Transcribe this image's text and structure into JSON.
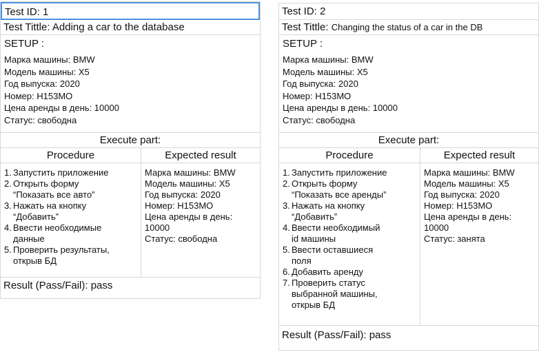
{
  "cards": [
    {
      "id_text": "Test ID: 1",
      "title_label": "Test Tittle: ",
      "title_value": "Adding a car to the database",
      "setup_label": "SETUP :",
      "setup_lines": [
        "Марка машины: BMW",
        "Модель машины: X5",
        "Год выпуска: 2020",
        "Номер: Н153МО",
        "Цена аренды в день: 10000",
        "Статус: свободна"
      ],
      "execute_label": "Execute part:",
      "procedure_label": "Procedure",
      "expected_label": "Expected result",
      "procedure_steps": [
        {
          "n": "1.",
          "lines": [
            "Запустить приложение"
          ]
        },
        {
          "n": "2.",
          "lines": [
            "Открыть форму",
            "“Показать все авто”"
          ]
        },
        {
          "n": "3.",
          "lines": [
            "Нажать на кнопку",
            "“Добавить”"
          ]
        },
        {
          "n": "4.",
          "lines": [
            "Ввести необходимые",
            "данные"
          ]
        },
        {
          "n": "5.",
          "lines": [
            "Проверить результаты,",
            "открыв БД"
          ]
        }
      ],
      "expected_lines": [
        "Марка машины: BMW",
        "Модель машины: X5",
        "Год выпуска: 2020",
        "Номер: Н153МО",
        "Цена аренды в день:",
        "10000",
        "Статус: свободна"
      ],
      "result_text": "Result (Pass/Fail): pass"
    },
    {
      "id_text": "Test ID: 2",
      "title_label": "Test Tittle: ",
      "title_value": "Changing the status of a car in the DB",
      "setup_label": "SETUP :",
      "setup_lines": [
        "Марка машины: BMW",
        "Модель машины: X5",
        "Год выпуска: 2020",
        "Номер: Н153МО",
        "Цена аренды в день: 10000",
        "Статус: свободна"
      ],
      "execute_label": "Execute part:",
      "procedure_label": "Procedure",
      "expected_label": "Expected result",
      "procedure_steps": [
        {
          "n": "1.",
          "lines": [
            "Запустить приложение"
          ]
        },
        {
          "n": "2.",
          "lines": [
            "Открыть форму",
            "“Показать все аренды”"
          ]
        },
        {
          "n": "3.",
          "lines": [
            "Нажать на кнопку",
            "“Добавить”"
          ]
        },
        {
          "n": "4.",
          "lines": [
            "Ввести необходимый",
            "id машины"
          ]
        },
        {
          "n": "5.",
          "lines": [
            "Ввести оставшиеся",
            "поля"
          ]
        },
        {
          "n": "6.",
          "lines": [
            "Добавить аренду"
          ]
        },
        {
          "n": "7.",
          "lines": [
            "Проверить статус",
            "выбранной машины,",
            "открыв БД"
          ]
        }
      ],
      "expected_lines": [
        "Марка машины: BMW",
        "Модель машины: X5",
        "Год выпуска: 2020",
        "Номер: Н153МО",
        "Цена аренды в день:",
        "10000",
        "Статус: занята"
      ],
      "result_text": "Result (Pass/Fail): pass"
    }
  ],
  "colors": {
    "border": "#d7d7d7",
    "focus": "#4a90e2"
  }
}
